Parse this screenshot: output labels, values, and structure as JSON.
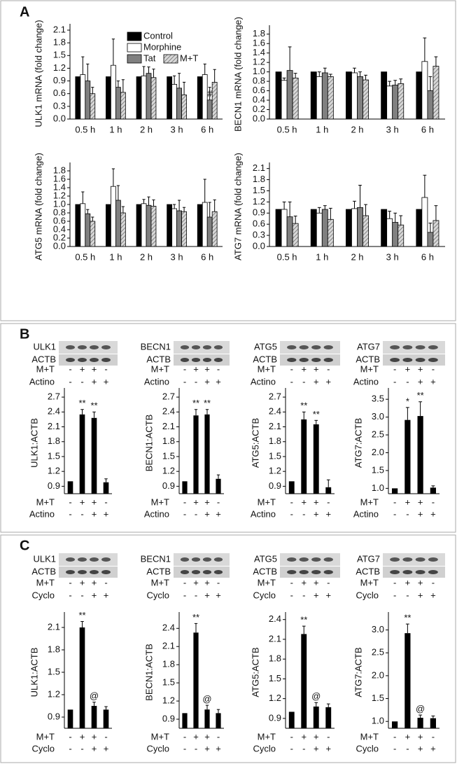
{
  "panels": [
    "A",
    "B",
    "C"
  ],
  "chart_data": [
    {
      "type": "grouped-bar",
      "ylabel": "ULK1 mRNA (fold change)",
      "categories": [
        "0.5 h",
        "1 h",
        "2 h",
        "3 h",
        "6 h"
      ],
      "ylim": [
        0,
        2.15
      ],
      "yticks": [
        {
          "value": 0,
          "label": "0.0"
        },
        0.3,
        0.6,
        0.9,
        1.2,
        1.5,
        1.8,
        2.1
      ],
      "legend": "top-center",
      "series": [
        {
          "name": "Control",
          "color": "#000000",
          "values": [
            1,
            1,
            1,
            1,
            1
          ]
        },
        {
          "name": "Morphine",
          "color": "#ffffff",
          "values": [
            1.05,
            1.27,
            1.02,
            0.82,
            1.05
          ],
          "errors": [
            0.42,
            0.62,
            0.22,
            0.2,
            0.25
          ]
        },
        {
          "name": "Tat",
          "color": "#808080",
          "values": [
            0.9,
            0.75,
            1.08,
            0.73,
            0.45
          ],
          "errors": [
            0.4,
            0.15,
            0.15,
            0.35,
            0.3
          ],
          "significance": [
            null,
            null,
            null,
            null,
            "#"
          ]
        },
        {
          "name": "M+T",
          "color": "#bdbdbd",
          "hatch": true,
          "values": [
            0.6,
            0.63,
            0.98,
            0.57,
            0.87
          ],
          "errors": [
            0.15,
            0.3,
            0.2,
            0.3,
            0.3
          ]
        }
      ]
    },
    {
      "type": "grouped-bar",
      "ylabel": "BECN1 mRNA (fold change)",
      "categories": [
        "0.5 h",
        "1 h",
        "2 h",
        "3 h",
        "6 h"
      ],
      "ylim": [
        0,
        1.9
      ],
      "yticks": [
        {
          "value": 0,
          "label": "0.0"
        },
        0.2,
        0.4,
        0.6,
        0.8,
        {
          "value": 1,
          "label": "1.0"
        },
        1.2,
        1.4,
        1.6,
        1.8
      ],
      "series": [
        {
          "color": "#000000",
          "values": [
            1,
            1,
            1,
            1,
            1
          ]
        },
        {
          "color": "#ffffff",
          "values": [
            0.82,
            0.9,
            0.98,
            0.7,
            1.22
          ],
          "errors": [
            0.05,
            0.1,
            0.1,
            0.1,
            0.5
          ]
        },
        {
          "color": "#808080",
          "values": [
            1.03,
            0.98,
            0.9,
            0.72,
            0.6
          ],
          "errors": [
            0.5,
            0.1,
            0.1,
            0.1,
            0.3
          ]
        },
        {
          "color": "#bdbdbd",
          "hatch": true,
          "values": [
            0.87,
            0.9,
            0.83,
            0.75,
            1.12
          ],
          "errors": [
            0.1,
            0.05,
            0.1,
            0.1,
            0.2
          ]
        }
      ]
    },
    {
      "type": "grouped-bar",
      "ylabel": "ATG5 mRNA (fold change)",
      "categories": [
        "0.5 h",
        "1 h",
        "2 h",
        "3 h",
        "6 h"
      ],
      "ylim": [
        0,
        1.9
      ],
      "yticks": [
        {
          "value": 0,
          "label": "0.0"
        },
        0.2,
        0.4,
        0.6,
        0.8,
        {
          "value": 1,
          "label": "1.0"
        },
        1.2,
        1.4,
        1.6,
        1.8
      ],
      "series": [
        {
          "color": "#000000",
          "values": [
            1,
            1,
            1,
            1,
            1
          ]
        },
        {
          "color": "#ffffff",
          "values": [
            1.02,
            1.43,
            1.02,
            0.9,
            1.05
          ],
          "errors": [
            0.28,
            0.42,
            0.1,
            0.1,
            0.55
          ]
        },
        {
          "color": "#808080",
          "values": [
            0.78,
            1.1,
            0.98,
            0.85,
            0.7
          ],
          "errors": [
            0.1,
            0.35,
            0.2,
            0.25,
            0.35
          ]
        },
        {
          "color": "#bdbdbd",
          "hatch": true,
          "values": [
            0.6,
            0.8,
            0.96,
            0.83,
            0.83
          ],
          "errors": [
            0.1,
            0.15,
            0.15,
            0.1,
            0.28
          ]
        }
      ]
    },
    {
      "type": "grouped-bar",
      "ylabel": "ATG7 mRNA (fold change)",
      "categories": [
        "0.5 h",
        "1 h",
        "2 h",
        "3 h",
        "6 h"
      ],
      "ylim": [
        0,
        2.15
      ],
      "yticks": [
        {
          "value": 0,
          "label": "0.0"
        },
        0.3,
        0.6,
        0.9,
        1.2,
        1.5,
        1.8,
        2.1
      ],
      "series": [
        {
          "color": "#000000",
          "values": [
            1,
            1,
            1,
            1,
            1
          ]
        },
        {
          "color": "#ffffff",
          "values": [
            1.0,
            0.9,
            1.02,
            0.75,
            1.32
          ],
          "errors": [
            0.2,
            0.15,
            0.2,
            0.2,
            0.6
          ]
        },
        {
          "color": "#808080",
          "values": [
            0.8,
            1.0,
            1.05,
            0.65,
            0.38
          ],
          "errors": [
            0.4,
            0.1,
            0.6,
            0.25,
            0.25
          ]
        },
        {
          "color": "#bdbdbd",
          "hatch": true,
          "values": [
            0.62,
            0.73,
            0.83,
            0.58,
            0.7
          ],
          "errors": [
            0.2,
            0.3,
            0.3,
            0.25,
            0.4
          ]
        }
      ]
    },
    {
      "type": "bar",
      "ylabel": "ULK1:ACTB",
      "blot_labels": [
        "ULK1",
        "ACTB"
      ],
      "conditions": [
        {
          "name": "M+T",
          "signs": [
            "-",
            "+",
            "+",
            "-"
          ]
        },
        {
          "name": "Actino",
          "signs": [
            "-",
            "-",
            "+",
            "+"
          ]
        }
      ],
      "ylim": [
        0.75,
        2.8
      ],
      "yticks": [
        0.9,
        1.2,
        1.5,
        1.8,
        2.1,
        2.4,
        2.7
      ],
      "color": "#000000",
      "values": [
        1.0,
        2.35,
        2.28,
        0.98
      ],
      "errors": [
        null,
        0.1,
        0.12,
        0.07
      ],
      "significance": [
        null,
        "**",
        "**",
        null
      ]
    },
    {
      "type": "bar",
      "ylabel": "BECN1:ACTB",
      "blot_labels": [
        "BECN1",
        "ACTB"
      ],
      "conditions": [
        {
          "name": "M+T",
          "signs": [
            "-",
            "+",
            "+",
            "-"
          ]
        },
        {
          "name": "Actino",
          "signs": [
            "-",
            "-",
            "+",
            "+"
          ]
        }
      ],
      "ylim": [
        0.75,
        2.8
      ],
      "yticks": [
        0.9,
        1.2,
        1.5,
        1.8,
        2.1,
        2.4,
        2.7
      ],
      "color": "#000000",
      "values": [
        1.0,
        2.33,
        2.35,
        1.05
      ],
      "errors": [
        null,
        0.12,
        0.1,
        0.08
      ],
      "significance": [
        null,
        "**",
        "**",
        null
      ]
    },
    {
      "type": "bar",
      "ylabel": "ATG5:ACTB",
      "blot_labels": [
        "ATG5",
        "ACTB"
      ],
      "conditions": [
        {
          "name": "M+T",
          "signs": [
            "-",
            "+",
            "+",
            "-"
          ]
        },
        {
          "name": "Actino",
          "signs": [
            "-",
            "-",
            "+",
            "+"
          ]
        }
      ],
      "ylim": [
        0.75,
        2.8
      ],
      "yticks": [
        0.9,
        1.2,
        1.5,
        1.8,
        2.1,
        2.4,
        2.7
      ],
      "color": "#000000",
      "values": [
        1.0,
        2.25,
        2.15,
        0.88
      ],
      "errors": [
        null,
        0.15,
        0.08,
        0.15
      ],
      "significance": [
        null,
        "**",
        "**",
        null
      ]
    },
    {
      "type": "bar",
      "ylabel": "ATG7:ACTB",
      "blot_labels": [
        "ATG7",
        "ACTB"
      ],
      "conditions": [
        {
          "name": "M+T",
          "signs": [
            "-",
            "+",
            "+",
            "-"
          ]
        },
        {
          "name": "Actino",
          "signs": [
            "-",
            "-",
            "+",
            "+"
          ]
        }
      ],
      "ylim": [
        0.85,
        3.7
      ],
      "yticks": [
        {
          "value": 1,
          "label": "1.0"
        },
        1.5,
        {
          "value": 2,
          "label": "2.0"
        },
        2.5,
        {
          "value": 3,
          "label": "3.0"
        },
        3.5
      ],
      "color": "#000000",
      "values": [
        1.0,
        2.92,
        3.03,
        1.02
      ],
      "errors": [
        null,
        0.35,
        0.4,
        0.05
      ],
      "significance": [
        null,
        "*",
        "**",
        null
      ]
    },
    {
      "type": "bar",
      "ylabel": "ULK1:ACTB",
      "blot_labels": [
        "ULK1",
        "ACTB"
      ],
      "conditions": [
        {
          "name": "M+T",
          "signs": [
            "-",
            "+",
            "+",
            "-"
          ]
        },
        {
          "name": "Cyclo",
          "signs": [
            "-",
            "-",
            "+",
            "+"
          ]
        }
      ],
      "ylim": [
        0.75,
        2.25
      ],
      "yticks": [
        0.9,
        1.2,
        1.5,
        1.8,
        2.1
      ],
      "color": "#000000",
      "values": [
        1.0,
        2.1,
        1.05,
        1.0
      ],
      "errors": [
        null,
        0.08,
        0.05,
        0.04
      ],
      "significance": [
        null,
        "**",
        "@",
        null
      ]
    },
    {
      "type": "bar",
      "ylabel": "BECN1:ACTB",
      "blot_labels": [
        "BECN1",
        "ACTB"
      ],
      "conditions": [
        {
          "name": "M+T",
          "signs": [
            "-",
            "+",
            "+",
            "-"
          ]
        },
        {
          "name": "Cyclo",
          "signs": [
            "-",
            "-",
            "+",
            "+"
          ]
        }
      ],
      "ylim": [
        0.75,
        2.6
      ],
      "yticks": [
        0.9,
        1.2,
        1.5,
        1.8,
        2.1,
        2.4
      ],
      "color": "#000000",
      "values": [
        1.0,
        2.33,
        1.06,
        1.0
      ],
      "errors": [
        null,
        0.15,
        0.07,
        0.06
      ],
      "significance": [
        null,
        "**",
        "@",
        null
      ]
    },
    {
      "type": "bar",
      "ylabel": "ATG5:ACTB",
      "blot_labels": [
        "ATG5",
        "ACTB"
      ],
      "conditions": [
        {
          "name": "M+T",
          "signs": [
            "-",
            "+",
            "+",
            "-"
          ]
        },
        {
          "name": "Cyclo",
          "signs": [
            "-",
            "-",
            "+",
            "+"
          ]
        }
      ],
      "ylim": [
        0.75,
        2.45
      ],
      "yticks": [
        0.9,
        1.2,
        1.5,
        1.8,
        2.1,
        2.4
      ],
      "color": "#000000",
      "values": [
        1.0,
        2.18,
        1.08,
        1.07
      ],
      "errors": [
        null,
        0.12,
        0.06,
        0.05
      ],
      "significance": [
        null,
        "**",
        "@",
        null
      ]
    },
    {
      "type": "bar",
      "ylabel": "ATG7:ACTB",
      "blot_labels": [
        "ATG7",
        "ACTB"
      ],
      "conditions": [
        {
          "name": "M+T",
          "signs": [
            "-",
            "+",
            "+",
            "-"
          ]
        },
        {
          "name": "Cyclo",
          "signs": [
            "-",
            "-",
            "+",
            "+"
          ]
        }
      ],
      "ylim": [
        0.85,
        3.3
      ],
      "yticks": [
        {
          "value": 1,
          "label": "1.0"
        },
        1.5,
        {
          "value": 2,
          "label": "2.0"
        },
        2.5,
        {
          "value": 3,
          "label": "3.0"
        }
      ],
      "color": "#000000",
      "values": [
        1.0,
        2.93,
        1.08,
        1.07
      ],
      "errors": [
        null,
        0.2,
        0.06,
        0.05
      ],
      "significance": [
        null,
        "**",
        "@",
        null
      ]
    }
  ]
}
